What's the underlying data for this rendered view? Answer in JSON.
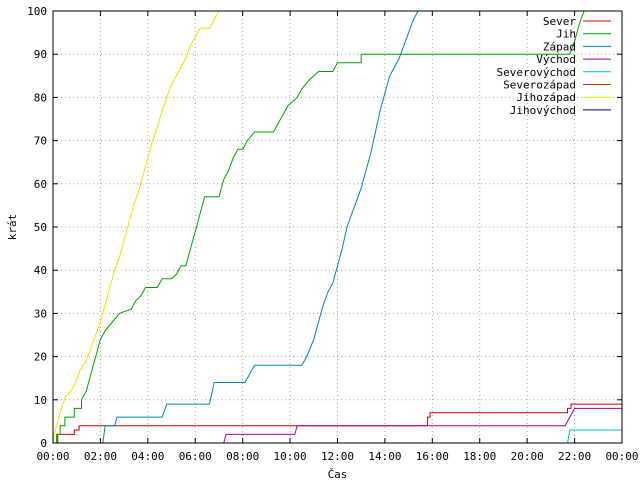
{
  "chart_data": {
    "type": "line",
    "title": "",
    "xlabel": "Čas",
    "ylabel": "krát",
    "xlim": [
      0,
      24
    ],
    "ylim": [
      0,
      100
    ],
    "grid": true,
    "legend_position": "top-right",
    "x_ticks": [
      {
        "value": 0,
        "label": "00:00"
      },
      {
        "value": 2,
        "label": "02:00"
      },
      {
        "value": 4,
        "label": "04:00"
      },
      {
        "value": 6,
        "label": "06:00"
      },
      {
        "value": 8,
        "label": "08:00"
      },
      {
        "value": 10,
        "label": "10:00"
      },
      {
        "value": 12,
        "label": "12:00"
      },
      {
        "value": 14,
        "label": "14:00"
      },
      {
        "value": 16,
        "label": "16:00"
      },
      {
        "value": 18,
        "label": "18:00"
      },
      {
        "value": 20,
        "label": "20:00"
      },
      {
        "value": 22,
        "label": "22:00"
      },
      {
        "value": 24,
        "label": "00:00"
      }
    ],
    "y_ticks": [
      {
        "value": 0,
        "label": "0"
      },
      {
        "value": 10,
        "label": "10"
      },
      {
        "value": 20,
        "label": "20"
      },
      {
        "value": 30,
        "label": "30"
      },
      {
        "value": 40,
        "label": "40"
      },
      {
        "value": 50,
        "label": "50"
      },
      {
        "value": 60,
        "label": "60"
      },
      {
        "value": 70,
        "label": "70"
      },
      {
        "value": 80,
        "label": "80"
      },
      {
        "value": 90,
        "label": "90"
      },
      {
        "value": 100,
        "label": "100"
      }
    ],
    "series": [
      {
        "name": "Sever",
        "color": "#cc0000",
        "points": [
          [
            0,
            0
          ],
          [
            0.2,
            0
          ],
          [
            0.2,
            2
          ],
          [
            0.9,
            2
          ],
          [
            0.9,
            3
          ],
          [
            1.1,
            3
          ],
          [
            1.1,
            4
          ],
          [
            15.8,
            4
          ],
          [
            15.8,
            6
          ],
          [
            15.9,
            6
          ],
          [
            15.9,
            7
          ],
          [
            21.7,
            7
          ],
          [
            21.7,
            8
          ],
          [
            21.85,
            8
          ],
          [
            21.85,
            9
          ],
          [
            24,
            9
          ]
        ]
      },
      {
        "name": "Jih",
        "color": "#00a000",
        "points": [
          [
            0,
            0
          ],
          [
            0.15,
            0
          ],
          [
            0.15,
            2
          ],
          [
            0.3,
            2
          ],
          [
            0.3,
            4
          ],
          [
            0.5,
            4
          ],
          [
            0.5,
            6
          ],
          [
            0.9,
            6
          ],
          [
            0.9,
            8
          ],
          [
            1.2,
            8
          ],
          [
            1.2,
            10
          ],
          [
            1.4,
            12
          ],
          [
            1.6,
            16
          ],
          [
            1.8,
            20
          ],
          [
            2.0,
            24
          ],
          [
            2.2,
            26
          ],
          [
            2.5,
            28
          ],
          [
            2.8,
            30
          ],
          [
            3.3,
            31
          ],
          [
            3.5,
            33
          ],
          [
            3.7,
            34
          ],
          [
            3.9,
            36
          ],
          [
            4.4,
            36
          ],
          [
            4.6,
            38
          ],
          [
            5.0,
            38
          ],
          [
            5.2,
            39
          ],
          [
            5.4,
            41
          ],
          [
            5.6,
            41
          ],
          [
            5.8,
            45
          ],
          [
            6.0,
            49
          ],
          [
            6.2,
            53
          ],
          [
            6.4,
            57
          ],
          [
            7.0,
            57
          ],
          [
            7.2,
            61
          ],
          [
            7.4,
            63
          ],
          [
            7.6,
            66
          ],
          [
            7.8,
            68
          ],
          [
            8.0,
            68
          ],
          [
            8.2,
            70
          ],
          [
            8.5,
            72
          ],
          [
            9.3,
            72
          ],
          [
            9.5,
            74
          ],
          [
            9.7,
            76
          ],
          [
            9.9,
            78
          ],
          [
            10.3,
            80
          ],
          [
            10.5,
            82
          ],
          [
            10.8,
            84
          ],
          [
            11.2,
            86
          ],
          [
            11.8,
            86
          ],
          [
            12.0,
            88
          ],
          [
            13.0,
            88
          ],
          [
            13.0,
            90
          ],
          [
            21.8,
            90
          ],
          [
            22.0,
            93
          ],
          [
            22.2,
            97
          ],
          [
            22.4,
            100
          ]
        ]
      },
      {
        "name": "Západ",
        "color": "#0080c0",
        "points": [
          [
            0,
            0
          ],
          [
            2.1,
            0
          ],
          [
            2.2,
            4
          ],
          [
            2.6,
            4
          ],
          [
            2.7,
            6
          ],
          [
            4.6,
            6
          ],
          [
            4.8,
            9
          ],
          [
            6.6,
            9
          ],
          [
            6.8,
            14
          ],
          [
            8.1,
            14
          ],
          [
            8.3,
            16
          ],
          [
            8.5,
            18
          ],
          [
            10.5,
            18
          ],
          [
            10.7,
            20
          ],
          [
            11.0,
            24
          ],
          [
            11.2,
            28
          ],
          [
            11.4,
            32
          ],
          [
            11.6,
            35
          ],
          [
            11.8,
            37
          ],
          [
            12.0,
            41
          ],
          [
            12.2,
            45
          ],
          [
            12.4,
            50
          ],
          [
            12.6,
            53
          ],
          [
            12.8,
            56
          ],
          [
            13.0,
            59
          ],
          [
            13.2,
            63
          ],
          [
            13.4,
            67
          ],
          [
            13.6,
            72
          ],
          [
            13.8,
            77
          ],
          [
            14.0,
            81
          ],
          [
            14.2,
            85
          ],
          [
            14.4,
            87
          ],
          [
            14.6,
            89
          ],
          [
            14.8,
            92
          ],
          [
            15.0,
            95
          ],
          [
            15.2,
            98
          ],
          [
            15.4,
            100
          ]
        ]
      },
      {
        "name": "Východ",
        "color": "#a000a0",
        "points": [
          [
            0,
            0
          ],
          [
            7.2,
            0
          ],
          [
            7.3,
            2
          ],
          [
            10.2,
            2
          ],
          [
            10.3,
            4
          ],
          [
            21.6,
            4
          ],
          [
            21.8,
            6
          ],
          [
            22.0,
            8
          ],
          [
            24,
            8
          ]
        ]
      },
      {
        "name": "Severovýchod",
        "color": "#00c0c0",
        "points": [
          [
            0,
            0
          ],
          [
            21.7,
            0
          ],
          [
            21.8,
            3
          ],
          [
            24,
            3
          ]
        ]
      },
      {
        "name": "Severozápad",
        "color": "#c04000",
        "points": []
      },
      {
        "name": "Jihozápad",
        "color": "#f0e000",
        "points": [
          [
            0,
            0
          ],
          [
            0.05,
            2
          ],
          [
            0.2,
            5
          ],
          [
            0.35,
            8
          ],
          [
            0.55,
            11
          ],
          [
            0.75,
            12
          ],
          [
            0.95,
            14
          ],
          [
            1.15,
            17
          ],
          [
            1.4,
            19
          ],
          [
            1.6,
            22
          ],
          [
            1.8,
            25
          ],
          [
            2.0,
            28
          ],
          [
            2.2,
            32
          ],
          [
            2.4,
            36
          ],
          [
            2.6,
            40
          ],
          [
            2.8,
            43
          ],
          [
            3.0,
            47
          ],
          [
            3.2,
            51
          ],
          [
            3.4,
            55
          ],
          [
            3.6,
            58
          ],
          [
            3.8,
            62
          ],
          [
            4.0,
            66
          ],
          [
            4.2,
            70
          ],
          [
            4.4,
            73
          ],
          [
            4.6,
            77
          ],
          [
            4.8,
            80
          ],
          [
            5.0,
            83
          ],
          [
            5.2,
            85
          ],
          [
            5.4,
            87
          ],
          [
            5.6,
            89
          ],
          [
            5.8,
            92
          ],
          [
            6.0,
            94
          ],
          [
            6.2,
            96
          ],
          [
            6.6,
            96
          ],
          [
            6.8,
            98
          ],
          [
            7.0,
            100
          ]
        ]
      },
      {
        "name": "Jihovýchod",
        "color": "#000080",
        "points": []
      }
    ]
  }
}
